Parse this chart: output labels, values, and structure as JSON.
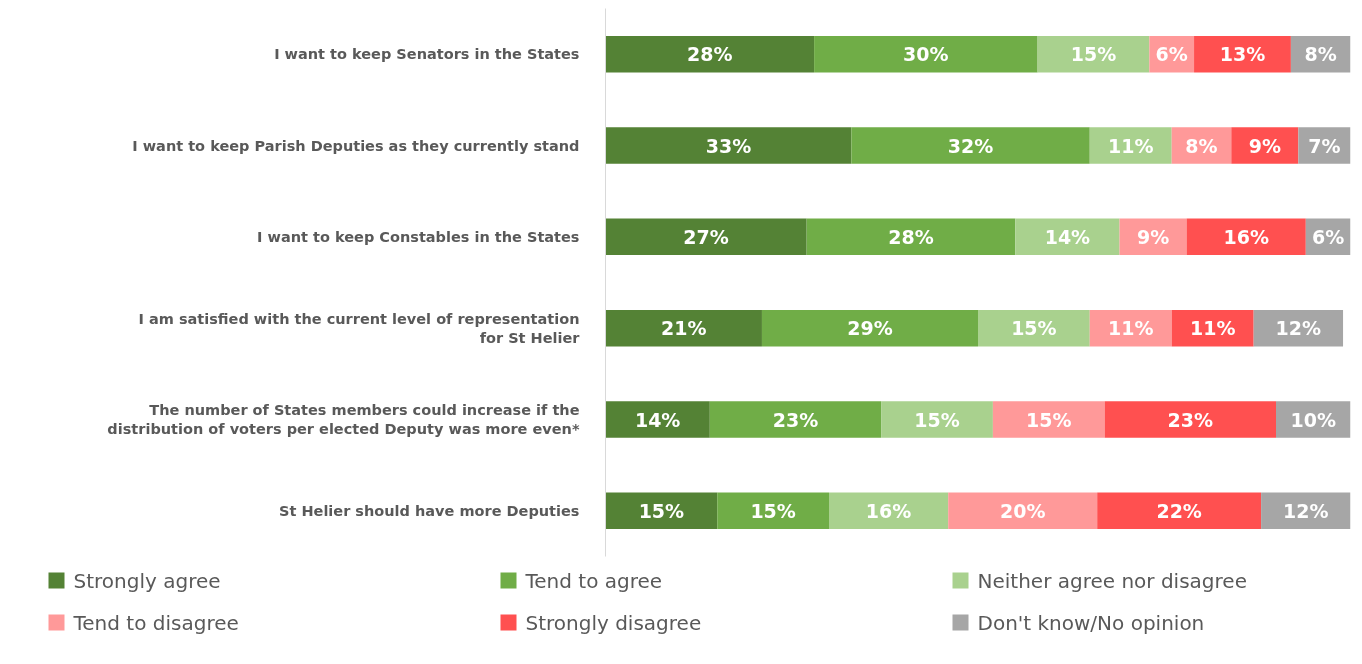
{
  "chart_data": {
    "type": "bar",
    "orientation": "horizontal",
    "stacked": true,
    "categories": [
      "I want to keep Senators in the States",
      "I want to keep Parish Deputies as they currently stand",
      "I want to keep Constables in the States",
      "I am satisfied with the current level of representation for St Helier",
      "The number of States members could increase if the distribution of voters per elected Deputy was more even*",
      "St Helier should have more Deputies"
    ],
    "xlim": [
      0,
      100
    ],
    "tick_labels": "y",
    "grid": false,
    "legend": "bottom",
    "series": [
      {
        "name": "Strongly agree",
        "color": "#548235",
        "values": [
          28,
          33,
          27,
          21,
          14,
          15
        ],
        "value_labels": [
          "28%",
          "33%",
          "27%",
          "21%",
          "14%",
          "15%"
        ]
      },
      {
        "name": "Tend to agree",
        "color": "#70ad47",
        "values": [
          30,
          32,
          28,
          29,
          23,
          15
        ],
        "value_labels": [
          "30%",
          "32%",
          "28%",
          "29%",
          "23%",
          "15%"
        ]
      },
      {
        "name": "Neither agree nor disagree",
        "color": "#a9d18e",
        "values": [
          15,
          11,
          14,
          15,
          15,
          16
        ],
        "value_labels": [
          "15%",
          "11%",
          "14%",
          "15%",
          "15%",
          "16%"
        ]
      },
      {
        "name": "Tend to disagree",
        "color": "#ff9999",
        "values": [
          6,
          8,
          9,
          11,
          15,
          20
        ],
        "value_labels": [
          "6%",
          "8%",
          "9%",
          "11%",
          "15%",
          "20%"
        ]
      },
      {
        "name": "Strongly disagree",
        "color": "#ff5050",
        "values": [
          13,
          9,
          16,
          11,
          23,
          22
        ],
        "value_labels": [
          "13%",
          "9%",
          "16%",
          "11%",
          "23%",
          "22%"
        ]
      },
      {
        "name": "Don't know/No opinion",
        "color": "#a6a6a6",
        "values": [
          8,
          7,
          6,
          12,
          10,
          12
        ],
        "value_labels": [
          "8%",
          "7%",
          "6%",
          "12%",
          "10%",
          "12%"
        ]
      }
    ]
  }
}
